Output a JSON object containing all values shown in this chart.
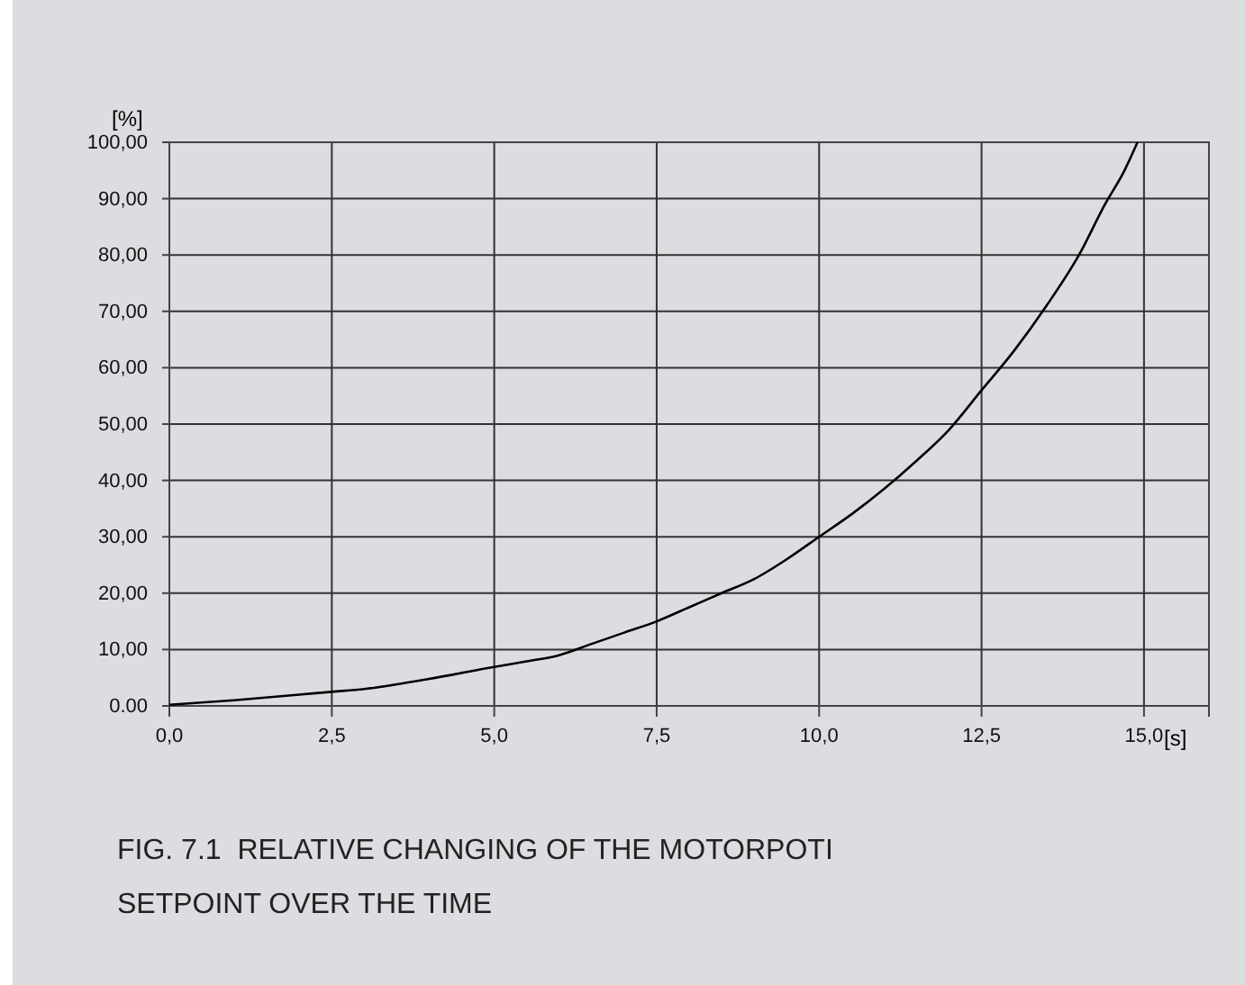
{
  "chart_data": {
    "type": "line",
    "xlabel": "[s]",
    "ylabel": "[%]",
    "annotations": [
      "FIG. 7.1  RELATIVE CHANGING OF THE MOTORPOTI SETPOINT OVER THE TIME"
    ],
    "xlim": [
      0,
      16
    ],
    "xticks": [
      {
        "value": 0,
        "label": "0,0"
      },
      {
        "value": 2.5,
        "label": "2,5"
      },
      {
        "value": 5,
        "label": "5,0"
      },
      {
        "value": 7.5,
        "label": "7,5"
      },
      {
        "value": 10,
        "label": "10,0"
      },
      {
        "value": 12.5,
        "label": "12,5"
      },
      {
        "value": 15,
        "label": "15,0"
      }
    ],
    "ylim": [
      0,
      100
    ],
    "yticks": [
      {
        "value": 0,
        "label": "0.00"
      },
      {
        "value": 10,
        "label": "10,00"
      },
      {
        "value": 20,
        "label": "20,00"
      },
      {
        "value": 30,
        "label": "30,00"
      },
      {
        "value": 40,
        "label": "40,00"
      },
      {
        "value": 50,
        "label": "50,00"
      },
      {
        "value": 60,
        "label": "60,00"
      },
      {
        "value": 70,
        "label": "70,00"
      },
      {
        "value": 80,
        "label": "80,00"
      },
      {
        "value": 90,
        "label": "90,00"
      },
      {
        "value": 100,
        "label": "100,00"
      }
    ],
    "grid": true,
    "line_style": "solid",
    "series": [
      {
        "color": "#000000",
        "x": [
          0,
          1,
          2,
          2.5,
          3,
          4,
          5,
          5.5,
          6,
          6.5,
          7,
          7.5,
          8,
          8.5,
          9,
          9.5,
          10,
          10.5,
          11,
          11.5,
          12,
          12.5,
          13,
          13.5,
          14,
          14.4,
          14.7,
          14.9
        ],
        "values": [
          0.2,
          1,
          2,
          2.5,
          3,
          4.8,
          6.9,
          7.9,
          9,
          11,
          13,
          15,
          17.5,
          20,
          22.5,
          26,
          30,
          34,
          38.5,
          43.5,
          49,
          56,
          63,
          71,
          80,
          89,
          95,
          100
        ]
      }
    ]
  }
}
